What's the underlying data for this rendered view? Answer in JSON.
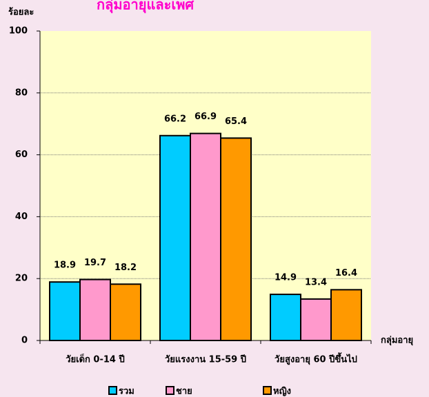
{
  "chart_data": {
    "type": "bar",
    "title": "กลุ่มอายุและเพศ",
    "y_label": "ร้อยละ",
    "x_label": "กลุ่มอายุ",
    "categories": [
      "วัยเด็ก 0-14 ปี",
      "วัยแรงงาน 15-59 ปี",
      "วัยสูงอายุ 60 ปีขึ้นไป"
    ],
    "series": [
      {
        "name": "รวม",
        "color": "#00ccff",
        "values": [
          18.9,
          66.2,
          14.9
        ]
      },
      {
        "name": "ชาย",
        "color": "#ff99cc",
        "values": [
          19.7,
          66.9,
          13.4
        ]
      },
      {
        "name": "หญิง",
        "color": "#ff9900",
        "values": [
          18.2,
          65.4,
          16.4
        ]
      }
    ],
    "ylim": [
      0,
      100
    ],
    "yticks": [
      0,
      20,
      40,
      60,
      80,
      100
    ],
    "grid": true,
    "legend": "bottom"
  }
}
